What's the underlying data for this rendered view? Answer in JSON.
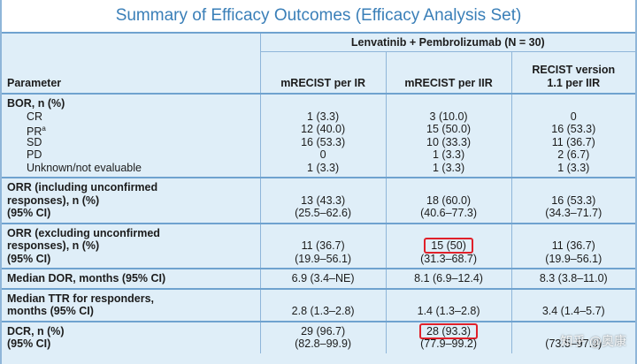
{
  "title": "Summary of Efficacy Outcomes (Efficacy Analysis Set)",
  "header": {
    "group_label": "Lenvatinib + Pembrolizumab (N = 30)",
    "param_label": "Parameter",
    "col_a": "mRECIST per IR",
    "col_b": "mRECIST per IIR",
    "col_c_line1": "RECIST version",
    "col_c_line2": "1.1 per IIR"
  },
  "rows": {
    "bor": {
      "label": "BOR, n (%)",
      "cr": {
        "label": "CR",
        "a": "1 (3.3)",
        "b": "3 (10.0)",
        "c": "0"
      },
      "pr": {
        "label": "PR",
        "sup": "a",
        "a": "12 (40.0)",
        "b": "15 (50.0)",
        "c": "16 (53.3)"
      },
      "sd": {
        "label": "SD",
        "a": "16 (53.3)",
        "b": "10 (33.3)",
        "c": "11 (36.7)"
      },
      "pd": {
        "label": "PD",
        "a": "0",
        "b": "1 (3.3)",
        "c": "2 (6.7)"
      },
      "ne": {
        "label": "Unknown/not evaluable",
        "a": "1 (3.3)",
        "b": "1 (3.3)",
        "c": "1 (3.3)"
      }
    },
    "orr_inc": {
      "label1": "ORR (including unconfirmed",
      "label2": "responses), n (%)",
      "label3": "(95% CI)",
      "a1": "13 (43.3)",
      "a2": "(25.5–62.6)",
      "b1": "18 (60.0)",
      "b2": "(40.6–77.3)",
      "c1": "16 (53.3)",
      "c2": "(34.3–71.7)"
    },
    "orr_exc": {
      "label1": "ORR (excluding unconfirmed",
      "label2": "responses), n (%)",
      "label3": "(95% CI)",
      "a1": "11 (36.7)",
      "a2": "(19.9–56.1)",
      "b1": "15 (50)",
      "b2": "(31.3–68.7)",
      "c1": "11 (36.7)",
      "c2": "(19.9–56.1)"
    },
    "dor": {
      "label": "Median DOR, months (95% CI)",
      "a": "6.9 (3.4–NE)",
      "b": "8.1 (6.9–12.4)",
      "c": "8.3 (3.8–11.0)"
    },
    "ttr": {
      "label1": "Median TTR for responders,",
      "label2": "months (95% CI)",
      "a": "2.8 (1.3–2.8)",
      "b": "1.4 (1.3–2.8)",
      "c": "3.4 (1.4–5.7)"
    },
    "dcr": {
      "label1": "DCR, n (%)",
      "label2": "(95% CI)",
      "a1": "29 (96.7)",
      "a2": "(82.8–99.9)",
      "b1": "28 (93.3)",
      "b2": "(77.9–99.2)",
      "c1": "",
      "c2": "(73.5–97.9)"
    }
  },
  "watermark": "知乎 @奥康",
  "colors": {
    "title_text": "#3a7fb8",
    "background": "#dfeef8",
    "rule": "#6fa2cf",
    "highlight_box": "#e0202a"
  }
}
